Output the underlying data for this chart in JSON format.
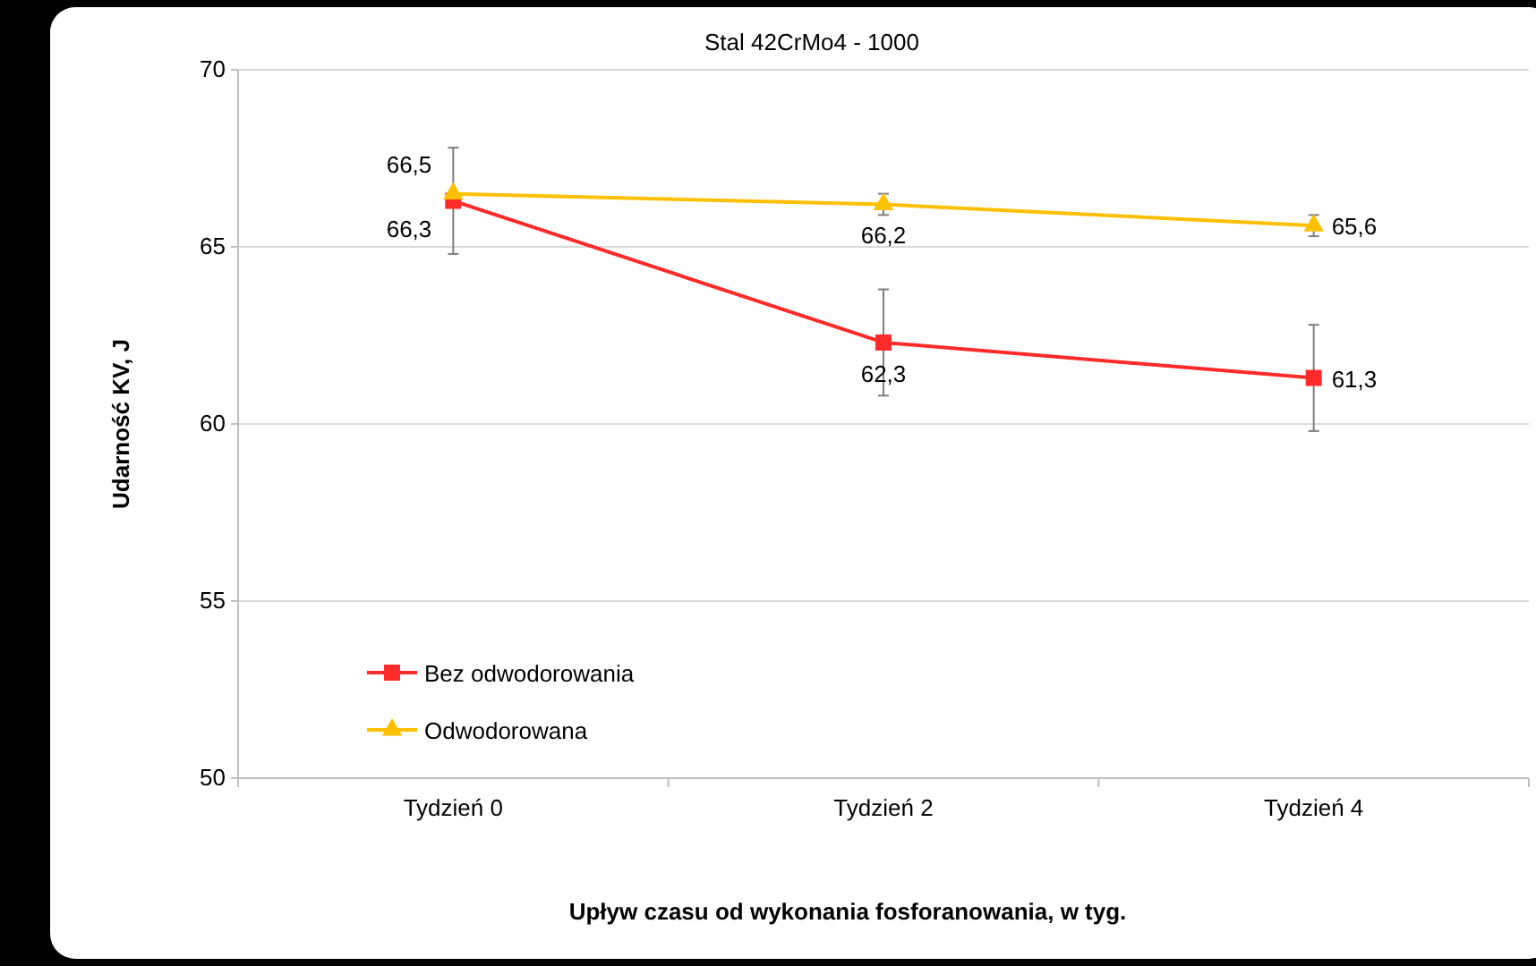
{
  "chart_data": {
    "type": "line",
    "title": "Stal 42CrMo4 - 1000",
    "xlabel": "Upływ czasu od wykonania fosforanowania, w tyg.",
    "ylabel": "Udarność KV, J",
    "categories": [
      "Tydzień 0",
      "Tydzień 2",
      "Tydzień 4"
    ],
    "series": [
      {
        "name": "Bez odwodorowania",
        "color": "#ff2a2a",
        "marker": "square",
        "values": [
          66.3,
          62.3,
          61.3
        ],
        "errors": [
          1.5,
          1.5,
          1.5
        ],
        "value_labels": [
          "66,3",
          "62,3",
          "61,3"
        ]
      },
      {
        "name": "Odwodorowana",
        "color": "#ffc000",
        "marker": "triangle",
        "values": [
          66.5,
          66.2,
          65.6
        ],
        "errors": [
          null,
          0.3,
          0.3
        ],
        "value_labels": [
          "66,5",
          "66,2",
          "65,6"
        ]
      }
    ],
    "ylim": [
      50,
      70
    ],
    "yticks": [
      50,
      55,
      60,
      65,
      70
    ],
    "grid": "y",
    "legend": "bottom left"
  }
}
